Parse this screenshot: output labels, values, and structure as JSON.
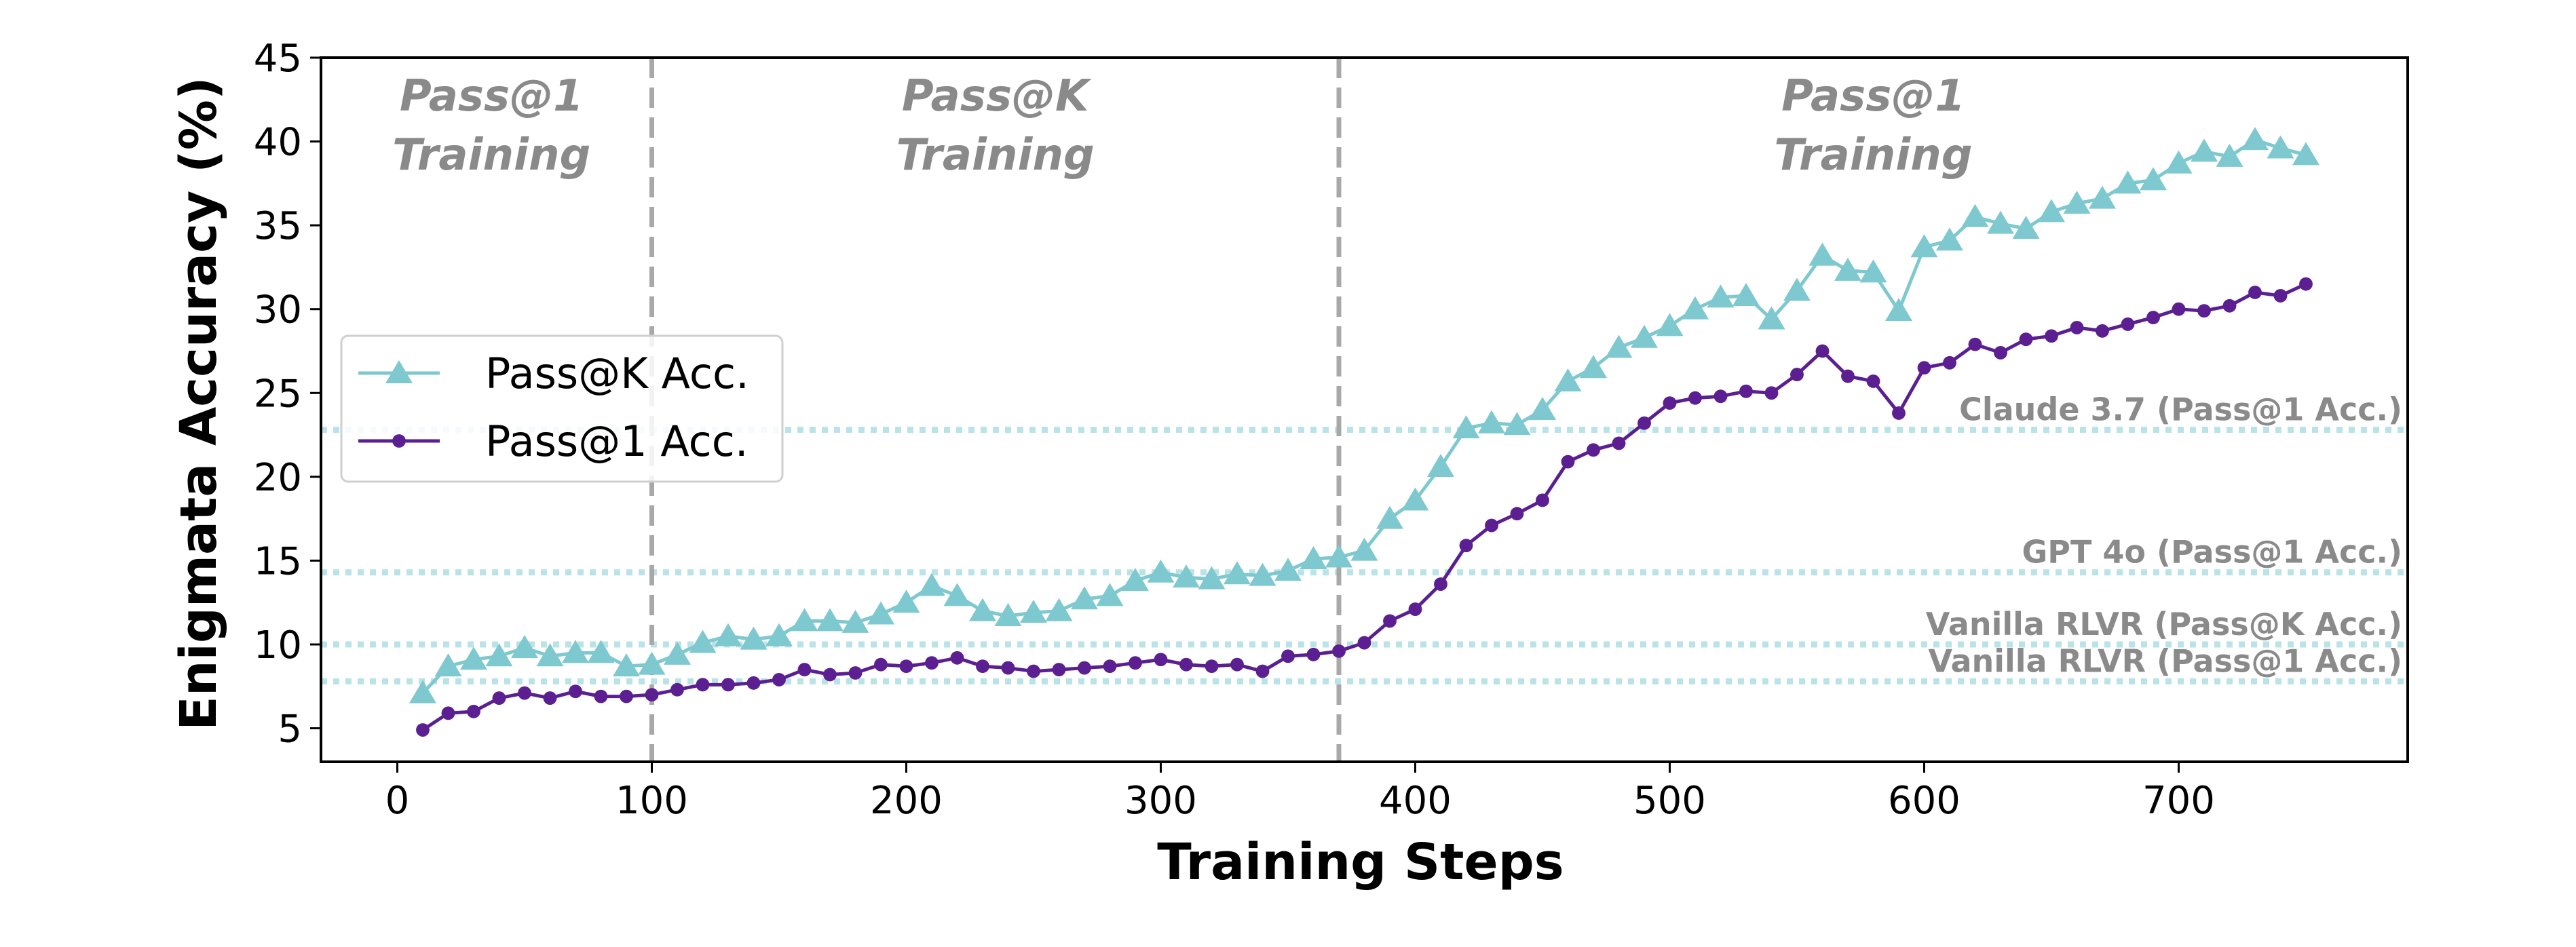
{
  "chart_data": {
    "type": "line",
    "xlabel": "Training Steps",
    "ylabel": "Enigmata Accuracy (%)",
    "xlim": [
      -30,
      790
    ],
    "ylim": [
      3,
      45
    ],
    "xticks": [
      0,
      100,
      200,
      300,
      400,
      500,
      600,
      700
    ],
    "yticks": [
      5,
      10,
      15,
      20,
      25,
      30,
      35,
      40,
      45
    ],
    "grid": false,
    "legend_position": "center-left",
    "x": [
      10,
      20,
      30,
      40,
      50,
      60,
      70,
      80,
      90,
      100,
      110,
      120,
      130,
      140,
      150,
      160,
      170,
      180,
      190,
      200,
      210,
      220,
      230,
      240,
      250,
      260,
      270,
      280,
      290,
      300,
      310,
      320,
      330,
      340,
      350,
      360,
      370,
      380,
      390,
      400,
      410,
      420,
      430,
      440,
      450,
      460,
      470,
      480,
      490,
      500,
      510,
      520,
      530,
      540,
      550,
      560,
      570,
      580,
      590,
      600,
      610,
      620,
      630,
      640,
      650,
      660,
      670,
      680,
      690,
      700,
      710,
      720,
      730,
      740,
      750
    ],
    "series": [
      {
        "name": "Pass@K Acc.",
        "color": "#7ec8cf",
        "marker": "triangle",
        "values": [
          7.1,
          8.7,
          9.1,
          9.3,
          9.8,
          9.3,
          9.5,
          9.5,
          8.7,
          8.8,
          9.4,
          10.1,
          10.5,
          10.3,
          10.5,
          11.4,
          11.4,
          11.3,
          11.8,
          12.5,
          13.5,
          12.9,
          12.0,
          11.7,
          11.9,
          12.0,
          12.7,
          12.9,
          13.8,
          14.3,
          14.0,
          13.9,
          14.2,
          14.1,
          14.4,
          15.1,
          15.2,
          15.6,
          17.5,
          18.6,
          20.6,
          22.9,
          23.2,
          23.1,
          24.0,
          25.7,
          26.5,
          27.7,
          28.3,
          29.0,
          30.0,
          30.7,
          30.8,
          29.4,
          31.1,
          33.2,
          32.3,
          32.2,
          29.9,
          33.7,
          34.1,
          35.5,
          35.1,
          34.8,
          35.8,
          36.3,
          36.6,
          37.5,
          37.7,
          38.7,
          39.4,
          39.1,
          40.1,
          39.6,
          39.2
        ]
      },
      {
        "name": "Pass@1 Acc.",
        "color": "#5b1f91",
        "marker": "circle",
        "values": [
          4.9,
          5.9,
          6.0,
          6.8,
          7.1,
          6.8,
          7.2,
          6.9,
          6.9,
          7.0,
          7.3,
          7.6,
          7.6,
          7.7,
          7.9,
          8.5,
          8.2,
          8.3,
          8.8,
          8.7,
          8.9,
          9.2,
          8.7,
          8.6,
          8.4,
          8.5,
          8.6,
          8.7,
          8.9,
          9.1,
          8.8,
          8.7,
          8.8,
          8.4,
          9.3,
          9.4,
          9.6,
          10.1,
          11.4,
          12.1,
          13.6,
          15.9,
          17.1,
          17.8,
          18.6,
          20.9,
          21.6,
          22.0,
          23.2,
          24.4,
          24.7,
          24.8,
          25.1,
          25.0,
          26.1,
          27.5,
          26.0,
          25.7,
          23.8,
          26.5,
          26.8,
          27.9,
          27.4,
          28.2,
          28.4,
          28.9,
          28.7,
          29.1,
          29.5,
          30.0,
          29.9,
          30.2,
          31.0,
          30.8,
          31.5
        ]
      }
    ],
    "phase_dividers": [
      100,
      370
    ],
    "phase_labels": [
      {
        "line1": "Pass@1",
        "line2": "Training",
        "x": 37
      },
      {
        "line1": "Pass@K",
        "line2": "Training",
        "x": 235
      },
      {
        "line1": "Pass@1",
        "line2": "Training",
        "x": 580
      }
    ],
    "reference_lines": [
      {
        "label": "Claude 3.7 (Pass@1 Acc.)",
        "y": 22.8
      },
      {
        "label": "GPT 4o (Pass@1 Acc.)",
        "y": 14.3
      },
      {
        "label": "Vanilla RLVR (Pass@K Acc.)",
        "y": 10.0
      },
      {
        "label": "Vanilla RLVR (Pass@1 Acc.)",
        "y": 7.8
      }
    ],
    "reference_color": "#b9e3e6",
    "divider_color": "#a8a8a8"
  }
}
